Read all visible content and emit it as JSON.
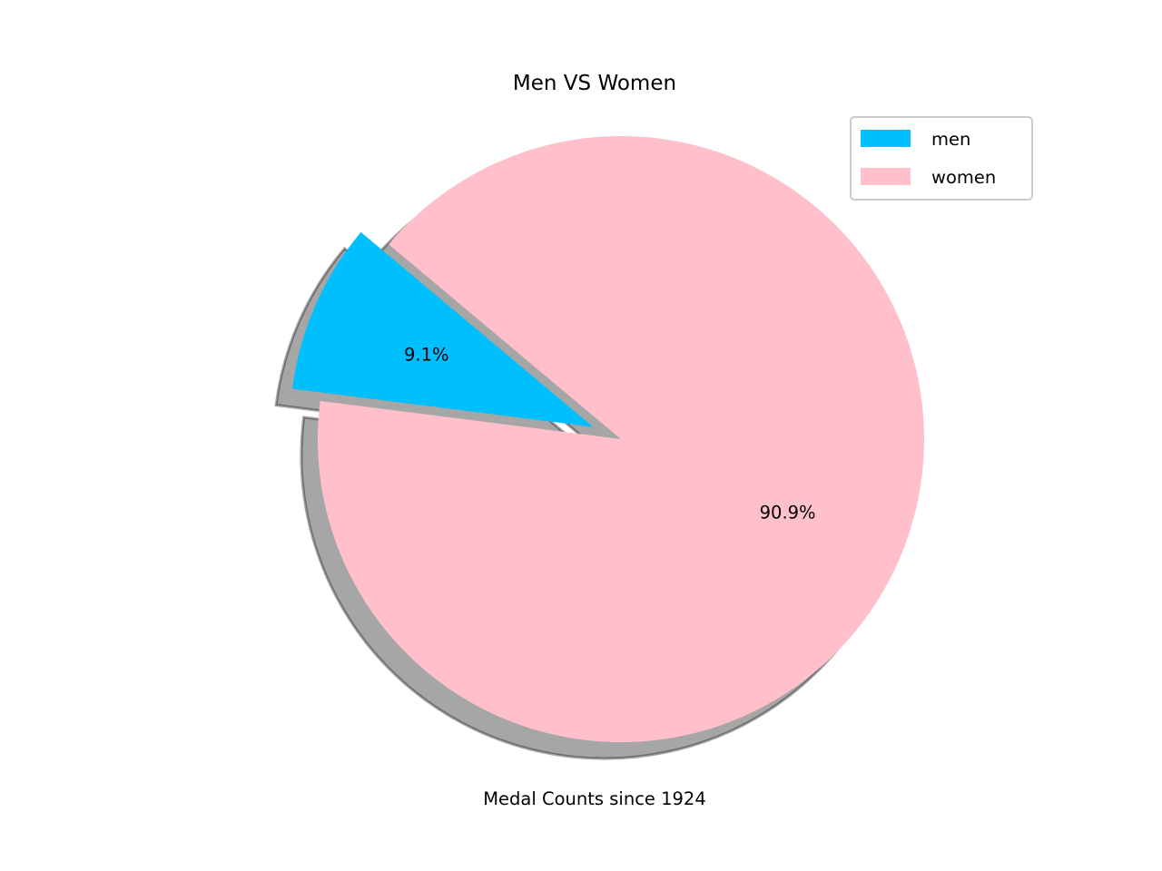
{
  "chart_data": {
    "type": "pie",
    "title": "Men VS Women",
    "xlabel": "Medal Counts since 1924",
    "categories": [
      "men",
      "women"
    ],
    "values": [
      9.1,
      90.9
    ],
    "value_labels": [
      "9.1%",
      "90.9%"
    ],
    "colors": [
      "#00bfff",
      "#ffc0cb"
    ],
    "exploded": [
      true,
      false
    ],
    "shadow": true,
    "start_angle_deg": 140,
    "legend": {
      "placement": "top-right",
      "entries": [
        "men",
        "women"
      ]
    }
  }
}
